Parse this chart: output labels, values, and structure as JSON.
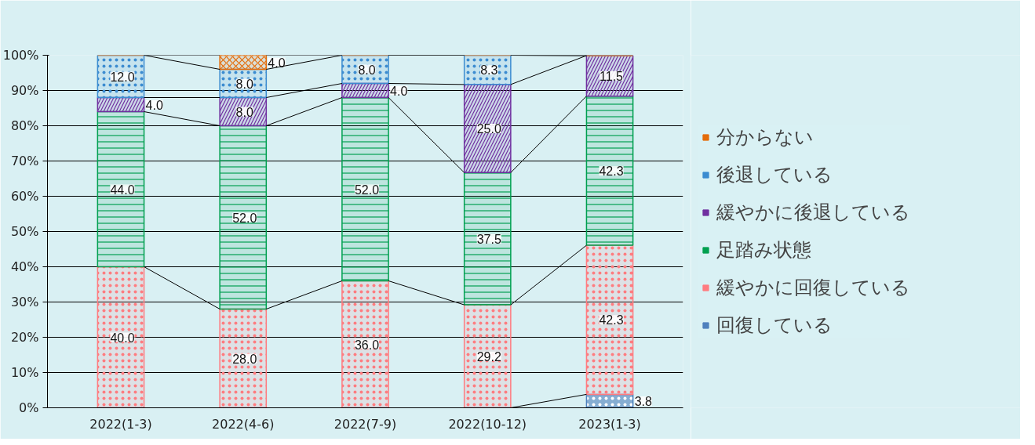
{
  "chart_data": {
    "type": "bar",
    "stacked": true,
    "categories": [
      "2022(1-3)",
      "2022(4-6)",
      "2022(7-9)",
      "2022(10-12)",
      "2023(1-3)"
    ],
    "series": [
      {
        "name": "回復している",
        "color": "#4f81bd",
        "values": [
          0,
          0,
          0,
          0,
          3.8
        ],
        "value_labels": [
          null,
          null,
          null,
          null,
          "3.8"
        ]
      },
      {
        "name": "緩やかに回復している",
        "color": "#ff7c80",
        "values": [
          40.0,
          28.0,
          36.0,
          29.2,
          42.3
        ],
        "value_labels": [
          "40.0",
          "28.0",
          "36.0",
          "29.2",
          "42.3"
        ]
      },
      {
        "name": "足踏み状態",
        "color": "#00a050",
        "values": [
          44.0,
          52.0,
          52.0,
          37.5,
          42.3
        ],
        "value_labels": [
          "44.0",
          "52.0",
          "52.0",
          "37.5",
          "42.3"
        ]
      },
      {
        "name": "緩やかに後退している",
        "color": "#7030a0",
        "values": [
          4.0,
          8.0,
          4.0,
          25.0,
          11.5
        ],
        "value_labels": [
          "4.0",
          "8.0",
          "4.0",
          "25.0",
          "11.5"
        ]
      },
      {
        "name": "後退している",
        "color": "#3c8cd0",
        "values": [
          12.0,
          8.0,
          8.0,
          8.3,
          0
        ],
        "value_labels": [
          "12.0",
          "8.0",
          "8.0",
          "8.3",
          null
        ]
      },
      {
        "name": "分からない",
        "color": "#e46c0a",
        "values": [
          0,
          4.0,
          0,
          0,
          0
        ],
        "value_labels": [
          null,
          "4.0",
          null,
          null,
          null
        ]
      }
    ],
    "ylim": [
      0,
      100
    ],
    "yticks": [
      {
        "value": 0,
        "label": "0%"
      },
      {
        "value": 10,
        "label": "10%"
      },
      {
        "value": 20,
        "label": "20%"
      },
      {
        "value": 30,
        "label": "30%"
      },
      {
        "value": 40,
        "label": "40%"
      },
      {
        "value": 50,
        "label": "50%"
      },
      {
        "value": 60,
        "label": "60%"
      },
      {
        "value": 70,
        "label": "70%"
      },
      {
        "value": 80,
        "label": "80%"
      },
      {
        "value": 90,
        "label": "90%"
      },
      {
        "value": 100,
        "label": "100%"
      }
    ],
    "grid": "y",
    "legend": "right"
  }
}
